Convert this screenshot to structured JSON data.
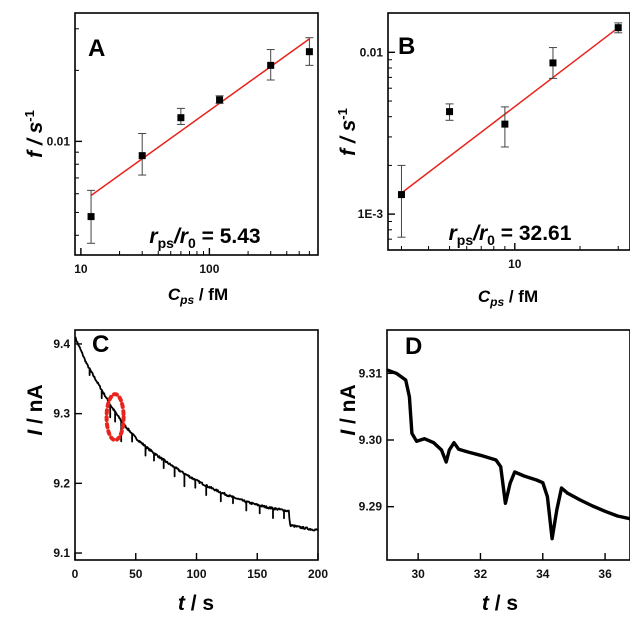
{
  "chart_data": [
    {
      "panel": "A",
      "type": "scatter",
      "xscale": "log",
      "yscale": "log",
      "xlim": [
        9,
        700
      ],
      "ylim": [
        0.0033,
        0.035
      ],
      "xlabel": "C",
      "xlabel_sub": "ps",
      "xlabel_unit": " / fM",
      "ylabel": "f / s",
      "ylabel_sup": "-1",
      "xticks": [
        {
          "v": 10,
          "t": "10"
        },
        {
          "v": 100,
          "t": "100"
        }
      ],
      "yticks": [
        {
          "v": 0.01,
          "t": "0.01"
        }
      ],
      "points": [
        {
          "x": 12,
          "y": 0.0048,
          "lo": 0.0037,
          "hi": 0.0062
        },
        {
          "x": 30,
          "y": 0.0087,
          "lo": 0.0072,
          "hi": 0.0108
        },
        {
          "x": 60,
          "y": 0.0126,
          "lo": 0.0118,
          "hi": 0.0138
        },
        {
          "x": 120,
          "y": 0.015,
          "lo": 0.0145,
          "hi": 0.0156
        },
        {
          "x": 300,
          "y": 0.021,
          "lo": 0.0182,
          "hi": 0.0245
        },
        {
          "x": 600,
          "y": 0.024,
          "lo": 0.021,
          "hi": 0.0275
        }
      ],
      "fit": {
        "x": [
          12,
          600
        ],
        "y": [
          0.0059,
          0.0272
        ],
        "color": "#e8231c"
      },
      "annotation": {
        "r1": "r",
        "r1_sub": "ps",
        "r2": "/r",
        "r2_sub": "0",
        "value": " = 5.43"
      }
    },
    {
      "panel": "B",
      "type": "scatter",
      "xscale": "log",
      "yscale": "log",
      "xlim": [
        2.6,
        34
      ],
      "ylim": [
        0.0006,
        0.0175
      ],
      "xlabel": "C",
      "xlabel_sub": "ps",
      "xlabel_unit": " / fM",
      "ylabel": "f / s",
      "ylabel_sup": "-1",
      "xticks": [
        {
          "v": 10,
          "t": "10"
        }
      ],
      "yticks": [
        {
          "v": 0.001,
          "t": "1E-3"
        },
        {
          "v": 0.01,
          "t": "0.01"
        }
      ],
      "points": [
        {
          "x": 3,
          "y": 0.00132,
          "lo": 0.00072,
          "hi": 0.002
        },
        {
          "x": 5,
          "y": 0.0043,
          "lo": 0.0038,
          "hi": 0.0048
        },
        {
          "x": 9,
          "y": 0.0036,
          "lo": 0.0026,
          "hi": 0.0046
        },
        {
          "x": 15,
          "y": 0.0086,
          "lo": 0.0069,
          "hi": 0.0107
        },
        {
          "x": 30,
          "y": 0.0142,
          "lo": 0.0132,
          "hi": 0.0152
        }
      ],
      "fit": {
        "x": [
          3,
          30
        ],
        "y": [
          0.00135,
          0.0142
        ],
        "color": "#e8231c"
      },
      "annotation": {
        "r1": "r",
        "r1_sub": "ps",
        "r2": "/r",
        "r2_sub": "0",
        "value": " = 32.61"
      }
    },
    {
      "panel": "C",
      "type": "line",
      "xlim": [
        0,
        200
      ],
      "ylim": [
        9.09,
        9.42
      ],
      "xlabel": "t / s",
      "ylabel": "I / nA",
      "xticks": [
        {
          "v": 0,
          "t": "0"
        },
        {
          "v": 50,
          "t": "50"
        },
        {
          "v": 100,
          "t": "100"
        },
        {
          "v": 150,
          "t": "150"
        },
        {
          "v": 200,
          "t": "200"
        }
      ],
      "yticks": [
        {
          "v": 9.1,
          "t": "9.1"
        },
        {
          "v": 9.2,
          "t": "9.2"
        },
        {
          "v": 9.3,
          "t": "9.3"
        },
        {
          "v": 9.4,
          "t": "9.4"
        }
      ],
      "baseline": [
        [
          0,
          9.41
        ],
        [
          10,
          9.37
        ],
        [
          20,
          9.34
        ],
        [
          30,
          9.31
        ],
        [
          40,
          9.285
        ],
        [
          50,
          9.265
        ],
        [
          60,
          9.25
        ],
        [
          70,
          9.237
        ],
        [
          80,
          9.225
        ],
        [
          90,
          9.214
        ],
        [
          100,
          9.204
        ],
        [
          110,
          9.195
        ],
        [
          120,
          9.187
        ],
        [
          130,
          9.18
        ],
        [
          140,
          9.174
        ],
        [
          150,
          9.169
        ],
        [
          160,
          9.165
        ],
        [
          170,
          9.162
        ],
        [
          176,
          9.16
        ],
        [
          177,
          9.14
        ],
        [
          185,
          9.137
        ],
        [
          195,
          9.134
        ],
        [
          200,
          9.133
        ]
      ],
      "spikes": [
        [
          12,
          0.01
        ],
        [
          22,
          0.012
        ],
        [
          29,
          0.018
        ],
        [
          33,
          0.015
        ],
        [
          38,
          0.03
        ],
        [
          47,
          0.01
        ],
        [
          58,
          0.012
        ],
        [
          65,
          0.01
        ],
        [
          73,
          0.013
        ],
        [
          82,
          0.012
        ],
        [
          90,
          0.018
        ],
        [
          99,
          0.01
        ],
        [
          108,
          0.014
        ],
        [
          120,
          0.012
        ],
        [
          130,
          0.01
        ],
        [
          141,
          0.012
        ],
        [
          152,
          0.011
        ],
        [
          163,
          0.013
        ],
        [
          172,
          0.01
        ]
      ],
      "highlight": {
        "x": 33,
        "y": 9.295,
        "rx": 7,
        "ry": 0.033,
        "color": "#e8231c"
      }
    },
    {
      "panel": "D",
      "type": "line",
      "xlim": [
        29,
        36.8
      ],
      "ylim": [
        9.282,
        9.3165
      ],
      "xlabel": "t / s",
      "ylabel": "I / nA",
      "xticks": [
        {
          "v": 30,
          "t": "30"
        },
        {
          "v": 32,
          "t": "32"
        },
        {
          "v": 34,
          "t": "34"
        },
        {
          "v": 36,
          "t": "36"
        }
      ],
      "yticks": [
        {
          "v": 9.29,
          "t": "9.29"
        },
        {
          "v": 9.3,
          "t": "9.30"
        },
        {
          "v": 9.31,
          "t": "9.31"
        }
      ],
      "trace": [
        [
          29,
          9.3105
        ],
        [
          29.3,
          9.31
        ],
        [
          29.6,
          9.309
        ],
        [
          29.72,
          9.3065
        ],
        [
          29.8,
          9.301
        ],
        [
          29.95,
          9.2998
        ],
        [
          30.2,
          9.3002
        ],
        [
          30.5,
          9.2996
        ],
        [
          30.75,
          9.2985
        ],
        [
          30.9,
          9.2967
        ],
        [
          31.0,
          9.2985
        ],
        [
          31.15,
          9.2996
        ],
        [
          31.3,
          9.2986
        ],
        [
          31.6,
          9.2982
        ],
        [
          32.0,
          9.2977
        ],
        [
          32.5,
          9.297
        ],
        [
          32.65,
          9.296
        ],
        [
          32.8,
          9.2905
        ],
        [
          32.95,
          9.2935
        ],
        [
          33.1,
          9.2952
        ],
        [
          33.4,
          9.2946
        ],
        [
          33.8,
          9.294
        ],
        [
          34.0,
          9.2936
        ],
        [
          34.15,
          9.2915
        ],
        [
          34.3,
          9.2852
        ],
        [
          34.45,
          9.2895
        ],
        [
          34.6,
          9.2928
        ],
        [
          34.8,
          9.292
        ],
        [
          35.2,
          9.291
        ],
        [
          35.6,
          9.2901
        ],
        [
          36.0,
          9.2893
        ],
        [
          36.4,
          9.2886
        ],
        [
          36.8,
          9.2882
        ]
      ]
    }
  ]
}
